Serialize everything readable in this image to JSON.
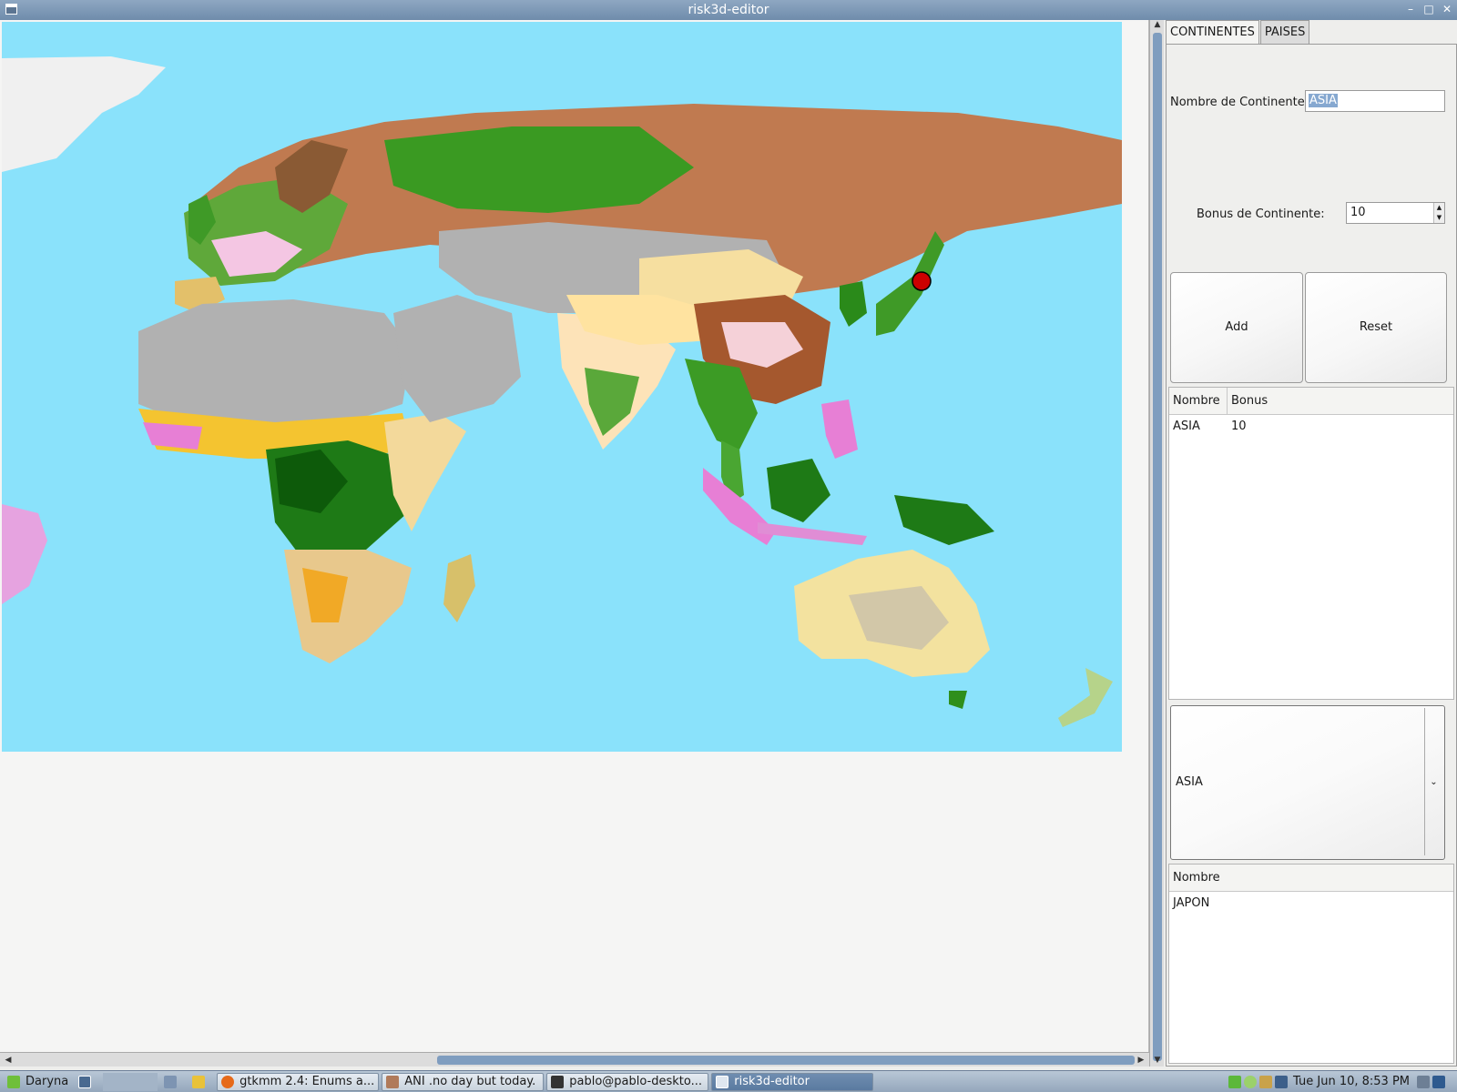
{
  "window": {
    "title": "risk3d-editor"
  },
  "tabs": [
    {
      "label": "CONTINENTES"
    },
    {
      "label": "PAISES"
    }
  ],
  "continent_form": {
    "name_label": "Nombre de Continente:",
    "name_value": "ASIA",
    "bonus_label": "Bonus de Continente:",
    "bonus_value": "10",
    "add_label": "Add",
    "reset_label": "Reset"
  },
  "continents_table": {
    "columns": [
      "Nombre",
      "Bonus"
    ],
    "rows": [
      {
        "nombre": "ASIA",
        "bonus": "10"
      }
    ]
  },
  "continent_combo": {
    "selected": "ASIA"
  },
  "countries_table": {
    "columns": [
      "Nombre"
    ],
    "rows": [
      {
        "nombre": "JAPON"
      }
    ]
  },
  "taskbar": {
    "menu_label": "Daryna",
    "windows": [
      {
        "label": "gtkmm 2.4: Enums a..."
      },
      {
        "label": "ANI   .no day but today."
      },
      {
        "label": "pablo@pablo-deskto..."
      },
      {
        "label": "risk3d-editor"
      }
    ],
    "clock": "Tue Jun 10,  8:53 PM"
  },
  "colors": {
    "ocean": "#8ae2fb",
    "desert": "#b1b1b1",
    "forest": "#2f8f1c",
    "tundra": "#b87a4c",
    "marker": "#cc0000",
    "scroll_thumb": "#7f9dbf"
  }
}
